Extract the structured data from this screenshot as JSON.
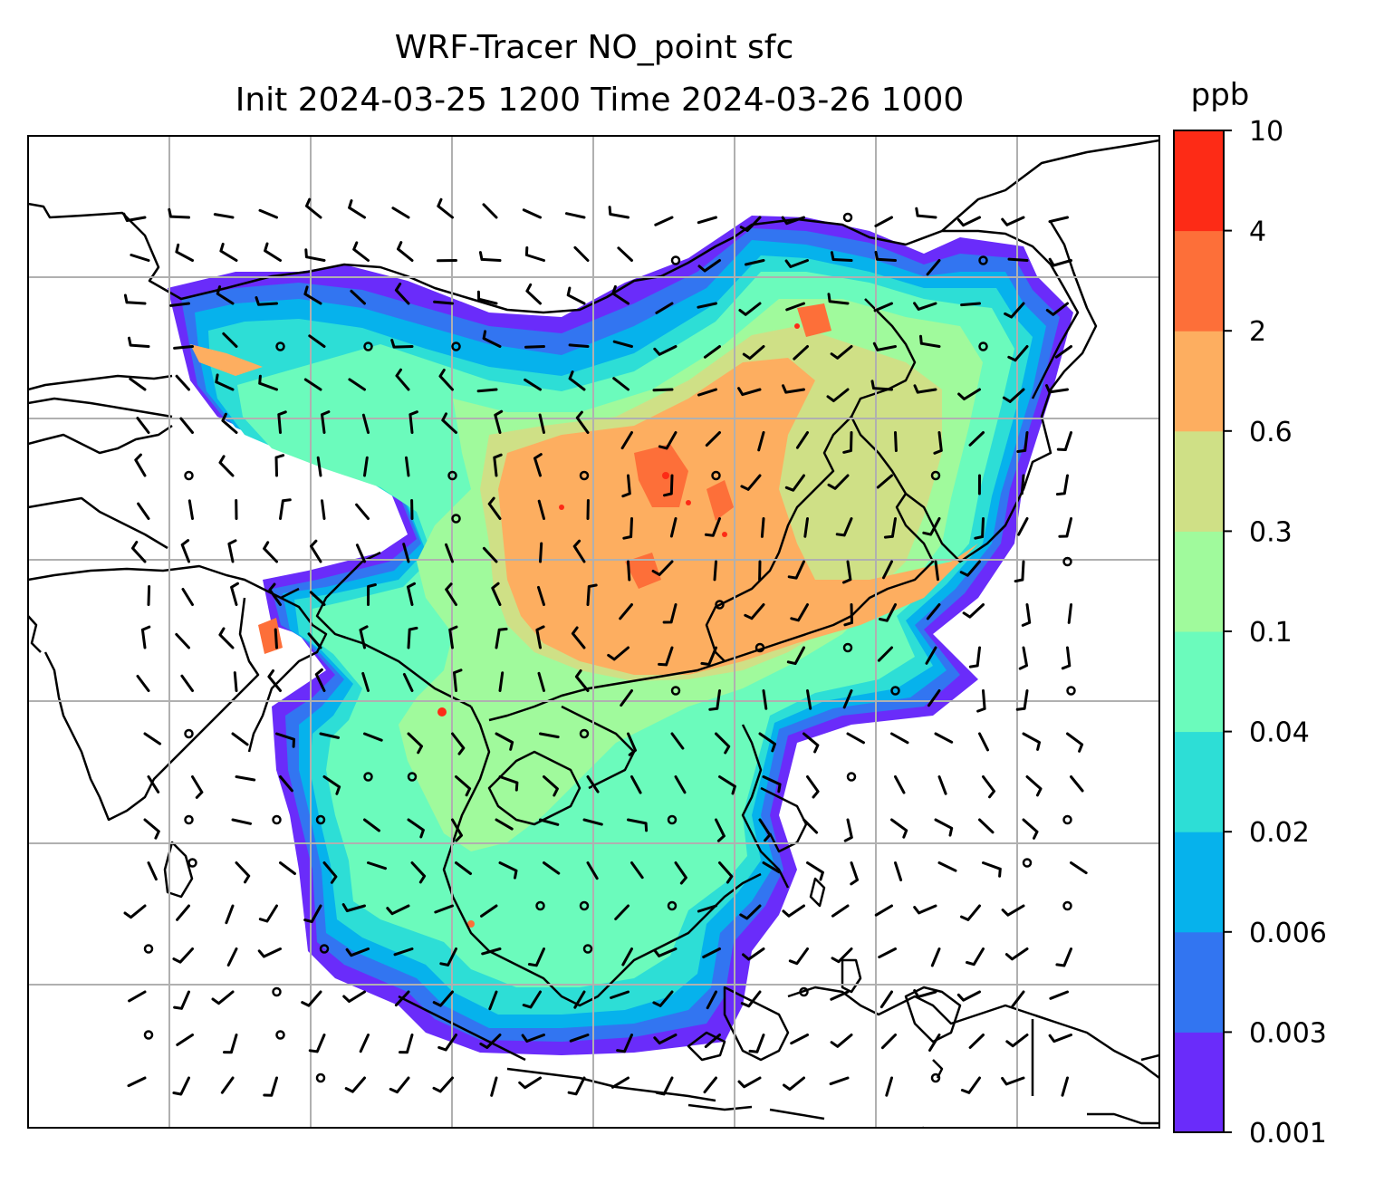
{
  "title_line1": "WRF-Tracer NO_point sfc",
  "title_line2": "Init 2024-03-25 1200 Time 2024-03-26 1000",
  "colorbar": {
    "unit": "ppb",
    "ticks": [
      "0.001",
      "0.003",
      "0.006",
      "0.02",
      "0.04",
      "0.1",
      "0.3",
      "0.6",
      "2",
      "4",
      "10"
    ],
    "colors": [
      "#6a2cfa",
      "#3275f1",
      "#06b2ec",
      "#2dded6",
      "#6bfbbc",
      "#a0fa9c",
      "#cfe086",
      "#fdae60",
      "#fd6f39",
      "#fd2b16"
    ]
  },
  "map": {
    "field": "NO_point surface tracer concentration",
    "gridlines": true,
    "wind_barbs": true
  }
}
